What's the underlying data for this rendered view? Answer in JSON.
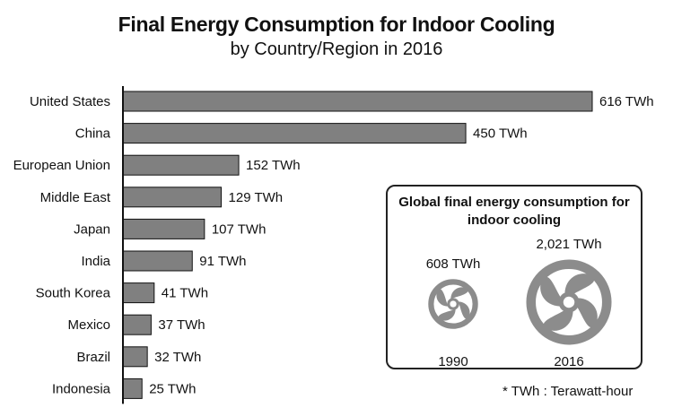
{
  "title": "Final Energy Consumption for Indoor Cooling",
  "subtitle": "by Country/Region in 2016",
  "chart_data": {
    "type": "bar",
    "orientation": "horizontal",
    "title": "Final Energy Consumption for Indoor Cooling",
    "subtitle": "by Country/Region in 2016",
    "categories": [
      "United States",
      "China",
      "European Union",
      "Middle East",
      "Japan",
      "India",
      "South Korea",
      "Mexico",
      "Brazil",
      "Indonesia"
    ],
    "values": [
      616,
      450,
      152,
      129,
      107,
      91,
      41,
      37,
      32,
      25
    ],
    "value_labels": [
      "616 TWh",
      "450 TWh",
      "152 TWh",
      "129 TWh",
      "107 TWh",
      "91 TWh",
      "41 TWh",
      "37 TWh",
      "32 TWh",
      "25 TWh"
    ],
    "unit": "TWh",
    "xlim": [
      0,
      616
    ],
    "grid": false,
    "bar_color": "#808080"
  },
  "inset": {
    "title": "Global final energy consumption for indoor cooling",
    "items": [
      {
        "year": "1990",
        "value": 608,
        "value_label": "608 TWh"
      },
      {
        "year": "2016",
        "value": 2021,
        "value_label": "2,021 TWh"
      }
    ],
    "fan_color": "#8c8c8c"
  },
  "footnote": "* TWh : Terawatt-hour"
}
